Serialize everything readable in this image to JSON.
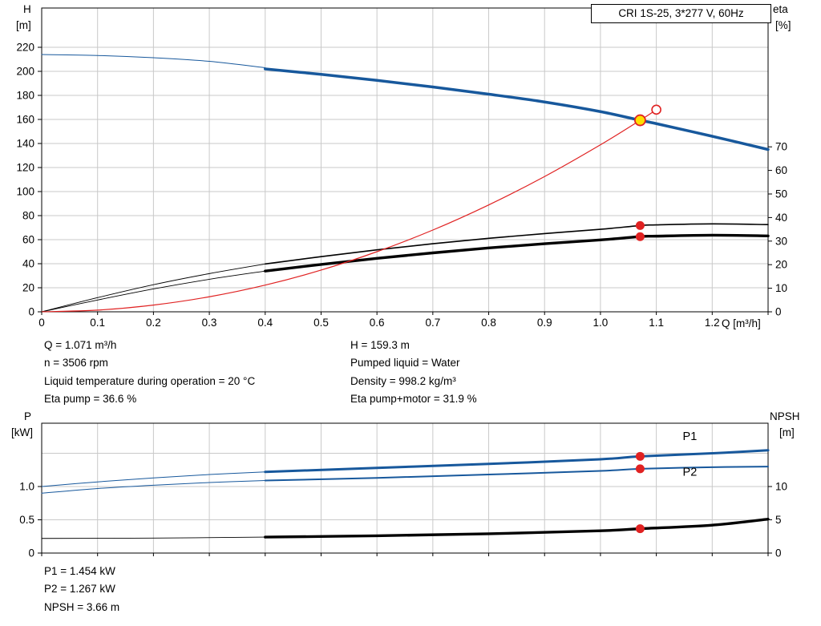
{
  "colors": {
    "blue": "#17589c",
    "red": "#e02222",
    "yellow": "#ffdf00",
    "black": "#000000",
    "grid": "#c9c9c9"
  },
  "top_info": {
    "left": [
      "Q = 1.071 m³/h",
      "n = 3506 rpm",
      "Liquid temperature during operation = 20 °C",
      "Eta pump = 36.6 %"
    ],
    "right": [
      "H = 159.3 m",
      "Pumped liquid = Water",
      "Density = 998.2 kg/m³",
      "Eta pump+motor = 31.9 %"
    ]
  },
  "bottom_info": [
    "P1 = 1.454 kW",
    "P2 = 1.267 kW",
    "NPSH = 3.66 m"
  ],
  "chart_data": [
    {
      "type": "line",
      "title": "CRI 1S-25, 3*277 V, 60Hz",
      "x_axis": {
        "label": "Q [m³/h]",
        "min": 0,
        "max": 1.3,
        "tick_step": 0.1,
        "tick_labels": [
          "0",
          "0.1",
          "0.2",
          "0.3",
          "0.4",
          "0.5",
          "0.6",
          "0.7",
          "0.8",
          "0.9",
          "1.0",
          "1.1",
          "1.2"
        ]
      },
      "left_axis": {
        "name": "H",
        "unit": "[m]",
        "min": 0,
        "max": 252,
        "ticks": [
          "0",
          "20",
          "40",
          "60",
          "80",
          "100",
          "120",
          "140",
          "160",
          "180",
          "200",
          "220"
        ],
        "grid": [
          20,
          40,
          60,
          80,
          100,
          120,
          140,
          160,
          180,
          200,
          220
        ]
      },
      "right_axis": {
        "name": "eta",
        "unit": "[%]",
        "min": 0,
        "max": 129,
        "ticks": [
          "0",
          "10",
          "20",
          "30",
          "40",
          "50",
          "60",
          "70"
        ]
      },
      "series": [
        {
          "name": "head-curve-thin",
          "axis": "left",
          "color": "blue",
          "width": 1,
          "x": [
            0,
            0.1,
            0.2,
            0.3,
            0.4
          ],
          "y": [
            214,
            213.2,
            211.3,
            208.3,
            203
          ]
        },
        {
          "name": "head-curve",
          "axis": "left",
          "color": "blue",
          "width": 3.5,
          "x": [
            0.4,
            0.5,
            0.6,
            0.7,
            0.8,
            0.9,
            1.0,
            1.071,
            1.1,
            1.2,
            1.3
          ],
          "y": [
            202,
            197.5,
            192.5,
            187,
            181,
            174.5,
            166.5,
            159.3,
            156.5,
            146,
            135
          ]
        },
        {
          "name": "eta-pump-curve-thin",
          "axis": "right",
          "color": "black",
          "width": 0.9,
          "x": [
            0,
            0.1,
            0.2,
            0.3,
            0.4
          ],
          "y": [
            0,
            6,
            11.5,
            16.2,
            20.3
          ]
        },
        {
          "name": "eta-pump-curve",
          "axis": "right",
          "color": "black",
          "width": 1.6,
          "x": [
            0.4,
            0.5,
            0.6,
            0.7,
            0.8,
            0.9,
            1.0,
            1.071,
            1.1,
            1.2,
            1.3
          ],
          "y": [
            20.3,
            23.4,
            26.3,
            28.9,
            31.2,
            33.2,
            35,
            36.6,
            36.9,
            37.3,
            37
          ]
        },
        {
          "name": "eta-pump-motor-curve-thin",
          "axis": "right",
          "color": "black",
          "width": 0.9,
          "x": [
            0,
            0.1,
            0.2,
            0.3,
            0.4
          ],
          "y": [
            0,
            5,
            9.7,
            13.8,
            17.3
          ]
        },
        {
          "name": "eta-pump-motor-curve",
          "axis": "right",
          "color": "black",
          "width": 3.4,
          "x": [
            0.4,
            0.5,
            0.6,
            0.7,
            0.8,
            0.9,
            1.0,
            1.071,
            1.1,
            1.2,
            1.3
          ],
          "y": [
            17.3,
            20.1,
            22.7,
            25,
            27.1,
            28.9,
            30.5,
            31.9,
            32.1,
            32.5,
            32.2
          ]
        },
        {
          "name": "system-curve",
          "axis": "left",
          "color": "red",
          "width": 1.2,
          "x": [
            0,
            0.1,
            0.2,
            0.3,
            0.4,
            0.5,
            0.6,
            0.7,
            0.8,
            0.9,
            1.0,
            1.071,
            1.1
          ],
          "y": [
            0,
            1.4,
            5.6,
            12.5,
            22.2,
            34.7,
            50,
            68,
            88.9,
            112.5,
            138.9,
            159.3,
            168.1
          ]
        }
      ],
      "points": [
        {
          "name": "requested-duty-point",
          "style": "open",
          "axis": "left",
          "x": 1.1,
          "y": 168.1
        },
        {
          "name": "duty-point",
          "style": "duty",
          "axis": "left",
          "x": 1.071,
          "y": 159.3
        },
        {
          "name": "eta-pump-point",
          "style": "dot",
          "axis": "right",
          "x": 1.071,
          "y": 36.6
        },
        {
          "name": "eta-pump-motor-point",
          "style": "dot",
          "axis": "right",
          "x": 1.071,
          "y": 31.9
        }
      ],
      "labels": []
    },
    {
      "type": "line",
      "title": "",
      "x_axis": {
        "label": "",
        "min": 0,
        "max": 1.3,
        "tick_step": 0.1,
        "tick_labels": []
      },
      "left_axis": {
        "name": "P",
        "unit": "[kW]",
        "min": 0,
        "max": 1.95,
        "ticks": [
          "0",
          "0.5",
          "1.0"
        ],
        "grid": [
          0.5,
          1.0,
          1.5
        ]
      },
      "right_axis": {
        "name": "NPSH",
        "unit": "[m]",
        "min": 0,
        "max": 19.5,
        "ticks": [
          "0",
          "5",
          "10"
        ]
      },
      "series": [
        {
          "name": "p1-curve-thin",
          "axis": "left",
          "color": "blue",
          "width": 1,
          "x": [
            0,
            0.1,
            0.2,
            0.3,
            0.4
          ],
          "y": [
            1.0,
            1.07,
            1.13,
            1.18,
            1.22
          ]
        },
        {
          "name": "p1-curve",
          "axis": "left",
          "color": "blue",
          "width": 3,
          "x": [
            0.4,
            0.6,
            0.8,
            1.0,
            1.071,
            1.2,
            1.3
          ],
          "y": [
            1.22,
            1.28,
            1.34,
            1.41,
            1.454,
            1.5,
            1.545
          ]
        },
        {
          "name": "p2-curve-thin",
          "axis": "left",
          "color": "blue",
          "width": 1,
          "x": [
            0,
            0.1,
            0.2,
            0.3,
            0.4
          ],
          "y": [
            0.9,
            0.97,
            1.02,
            1.06,
            1.09
          ]
        },
        {
          "name": "p2-curve",
          "axis": "left",
          "color": "blue",
          "width": 2,
          "x": [
            0.4,
            0.6,
            0.8,
            1.0,
            1.071,
            1.2,
            1.3
          ],
          "y": [
            1.09,
            1.13,
            1.18,
            1.235,
            1.267,
            1.29,
            1.3
          ]
        },
        {
          "name": "npsh-curve-thin",
          "axis": "right",
          "color": "black",
          "width": 0.9,
          "x": [
            0,
            0.2,
            0.4
          ],
          "y": [
            2.2,
            2.25,
            2.4
          ]
        },
        {
          "name": "npsh-curve",
          "axis": "right",
          "color": "black",
          "width": 3.4,
          "x": [
            0.4,
            0.6,
            0.8,
            1.0,
            1.071,
            1.2,
            1.3
          ],
          "y": [
            2.4,
            2.6,
            2.9,
            3.35,
            3.66,
            4.2,
            5.1
          ]
        }
      ],
      "points": [
        {
          "name": "p1-point",
          "style": "dot",
          "axis": "left",
          "x": 1.071,
          "y": 1.454
        },
        {
          "name": "p2-point",
          "style": "dot",
          "axis": "left",
          "x": 1.071,
          "y": 1.267
        },
        {
          "name": "npsh-point",
          "style": "dot",
          "axis": "right",
          "x": 1.071,
          "y": 3.66
        }
      ],
      "labels": [
        {
          "name": "p1-label",
          "text": "P1",
          "axis": "left",
          "x": 1.16,
          "y": 1.7,
          "color": "blue"
        },
        {
          "name": "p2-label",
          "text": "P2",
          "axis": "left",
          "x": 1.16,
          "y": 1.16,
          "color": "blue"
        }
      ]
    }
  ]
}
